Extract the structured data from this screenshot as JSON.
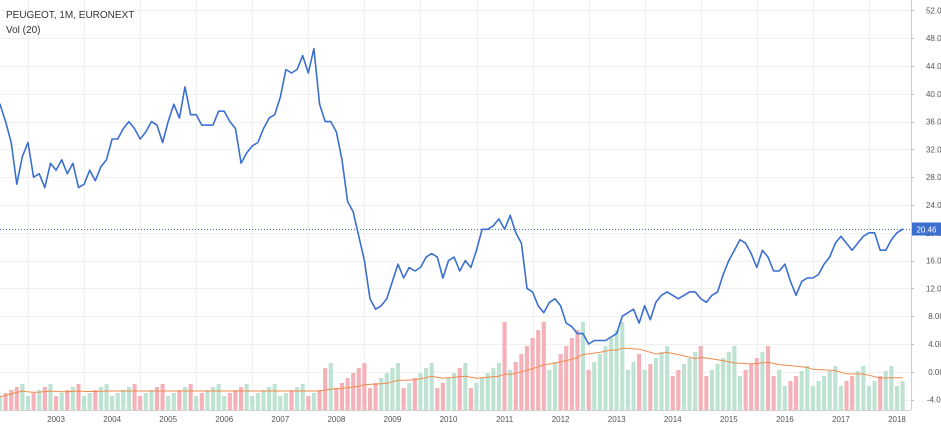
{
  "legend": {
    "title": "PEUGEOT, 1M, EURONEXT",
    "volume": "Vol (20)"
  },
  "colors": {
    "price_line": "#3a6fd0",
    "vol_up": "#bfe3d2",
    "vol_down": "#f4b2b8",
    "vol_ma": "#f08a4b",
    "last_price_bg": "#3a6fd0",
    "grid": "#f0f0f0",
    "axis_text": "#555555"
  },
  "chart_data": {
    "type": "line",
    "title": "PEUGEOT, 1M, EURONEXT",
    "xlabel": "",
    "ylabel": "",
    "ylim": [
      -5.5,
      53.5
    ],
    "grid": true,
    "legend_placement": "top-left",
    "y_ticks": [
      "52.00",
      "48.00",
      "44.00",
      "40.00",
      "36.00",
      "32.00",
      "28.00",
      "24.00",
      "20.00",
      "16.00",
      "12.00",
      "8.00",
      "4.00",
      "0.00",
      "-4.00"
    ],
    "x_ticks": [
      "2003",
      "2004",
      "2005",
      "2006",
      "2007",
      "2008",
      "2009",
      "2010",
      "2011",
      "2012",
      "2013",
      "2014",
      "2015",
      "2016",
      "2017",
      "2018"
    ],
    "last_price": "20.46",
    "series": [
      {
        "type": "line",
        "x": [
          2002.5,
          2002.6,
          2002.7,
          2002.8,
          2002.9,
          2003.0,
          2003.1,
          2003.2,
          2003.3,
          2003.4,
          2003.5,
          2003.6,
          2003.7,
          2003.8,
          2003.9,
          2004.0,
          2004.1,
          2004.2,
          2004.3,
          2004.4,
          2004.5,
          2004.6,
          2004.7,
          2004.8,
          2004.9,
          2005.0,
          2005.1,
          2005.2,
          2005.3,
          2005.4,
          2005.5,
          2005.6,
          2005.7,
          2005.8,
          2005.9,
          2006.0,
          2006.1,
          2006.2,
          2006.3,
          2006.4,
          2006.5,
          2006.6,
          2006.7,
          2006.8,
          2006.9,
          2007.0,
          2007.1,
          2007.2,
          2007.3,
          2007.4,
          2007.5,
          2007.6,
          2007.7,
          2007.8,
          2007.9,
          2008.0,
          2008.1,
          2008.2,
          2008.3,
          2008.4,
          2008.5,
          2008.6,
          2008.7,
          2008.8,
          2008.9,
          2009.0,
          2009.1,
          2009.2,
          2009.3,
          2009.4,
          2009.5,
          2009.6,
          2009.7,
          2009.8,
          2009.9,
          2010.0,
          2010.1,
          2010.2,
          2010.3,
          2010.4,
          2010.5,
          2010.6,
          2010.7,
          2010.8,
          2010.9,
          2011.0,
          2011.1,
          2011.2,
          2011.3,
          2011.4,
          2011.5,
          2011.6,
          2011.7,
          2011.8,
          2011.9,
          2012.0,
          2012.1,
          2012.2,
          2012.3,
          2012.4,
          2012.5,
          2012.6,
          2012.7,
          2012.8,
          2012.9,
          2013.0,
          2013.1,
          2013.2,
          2013.3,
          2013.4,
          2013.5,
          2013.6,
          2013.7,
          2013.8,
          2013.9,
          2014.0,
          2014.1,
          2014.2,
          2014.3,
          2014.4,
          2014.5,
          2014.6,
          2014.7,
          2014.8,
          2014.9,
          2015.0,
          2015.1,
          2015.2,
          2015.3,
          2015.4,
          2015.5,
          2015.6,
          2015.7,
          2015.8,
          2015.9,
          2016.0,
          2016.1,
          2016.2,
          2016.3,
          2016.4,
          2016.5,
          2016.6,
          2016.7,
          2016.8,
          2016.9,
          2017.0,
          2017.1,
          2017.2,
          2017.3,
          2017.4,
          2017.5,
          2017.6,
          2017.7,
          2017.8,
          2017.9,
          2018.0,
          2018.1,
          2018.2,
          2018.3,
          2018.4,
          2018.5,
          2018.6
        ],
        "values": [
          38.5,
          36.0,
          33.0,
          27.0,
          31.0,
          33.0,
          28.0,
          28.5,
          26.5,
          30.0,
          29.0,
          30.5,
          28.5,
          30.0,
          26.5,
          27.0,
          29.0,
          27.5,
          29.5,
          30.5,
          33.5,
          33.5,
          35.0,
          36.0,
          35.0,
          33.5,
          34.5,
          36.0,
          35.5,
          33.0,
          36.0,
          38.5,
          36.5,
          41.0,
          37.0,
          37.0,
          35.5,
          35.5,
          35.5,
          37.5,
          37.5,
          36.0,
          35.0,
          30.0,
          31.5,
          32.5,
          33.0,
          35.0,
          36.5,
          37.0,
          39.5,
          43.5,
          43.0,
          43.5,
          45.5,
          43.0,
          46.5,
          38.5,
          36.0,
          36.0,
          34.5,
          30.5,
          24.5,
          23.0,
          19.5,
          16.0,
          10.5,
          9.0,
          9.5,
          10.5,
          13.0,
          15.5,
          13.5,
          15.0,
          14.5,
          15.0,
          16.5,
          17.0,
          16.5,
          13.5,
          16.0,
          16.5,
          14.5,
          16.0,
          15.0,
          17.5,
          20.5,
          20.5,
          21.0,
          22.0,
          20.5,
          22.5,
          20.0,
          18.5,
          12.0,
          11.5,
          9.5,
          8.5,
          10.0,
          10.5,
          9.5,
          7.0,
          6.5,
          5.5,
          5.5,
          4.0,
          4.5,
          4.5,
          4.5,
          5.0,
          5.5,
          8.0,
          8.5,
          9.0,
          7.0,
          9.5,
          7.5,
          10.0,
          11.0,
          11.5,
          11.0,
          10.5,
          11.0,
          11.5,
          11.5,
          10.5,
          10.0,
          11.0,
          11.5,
          14.0,
          16.0,
          17.5,
          19.0,
          18.5,
          17.0,
          15.0,
          17.5,
          16.5,
          14.5,
          14.5,
          15.5,
          13.0,
          11.0,
          13.0,
          13.5,
          13.5,
          14.0,
          15.5,
          16.5,
          18.5,
          19.5,
          18.5,
          17.5,
          18.5,
          19.5,
          20.0,
          20.0,
          17.5,
          17.5,
          19.0,
          20.0,
          20.5
        ]
      }
    ]
  }
}
